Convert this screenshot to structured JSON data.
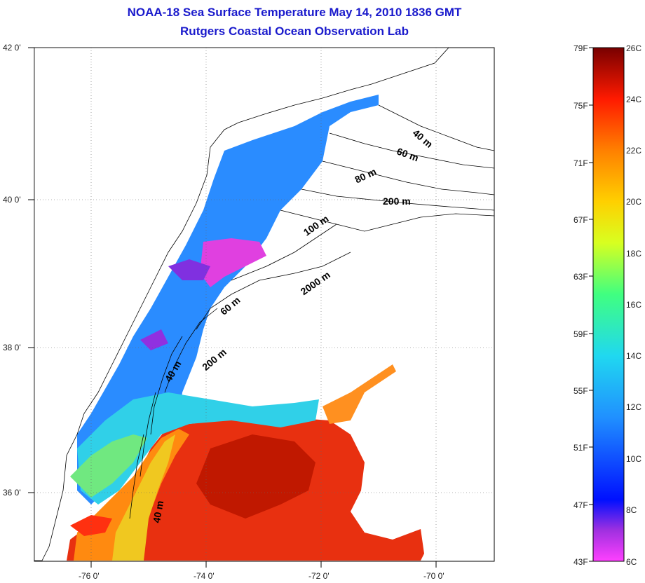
{
  "title_line1": "NOAA-18 Sea Surface Temperature May 14, 2010 1836 GMT",
  "title_line2": "Rutgers Coastal Ocean Observation Lab",
  "map": {
    "lon_labels": [
      "-76 0'",
      "-74 0'",
      "-72 0'",
      "-70 0'"
    ],
    "lat_labels": [
      "42 0'",
      "40 0'",
      "38 0'",
      "36 0'"
    ],
    "depth_contours": [
      "40 m",
      "60 m",
      "80 m",
      "100 m",
      "200 m",
      "2000 m",
      "60 m",
      "40 m",
      "200 m",
      "40 m"
    ]
  },
  "colorbar": {
    "fahrenheit": [
      "79F",
      "75F",
      "71F",
      "67F",
      "63F",
      "59F",
      "55F",
      "51F",
      "47F",
      "43F"
    ],
    "celsius": [
      "26C",
      "24C",
      "22C",
      "20C",
      "18C",
      "16C",
      "14C",
      "12C",
      "10C",
      "8C",
      "6C"
    ],
    "colors": [
      "#ff40ff",
      "#7a20d8",
      "#0010ff",
      "#2080ff",
      "#20c8ff",
      "#40ff80",
      "#c8ff20",
      "#ffd000",
      "#ff8000",
      "#ff1a00",
      "#c80000",
      "#7a0000"
    ]
  }
}
